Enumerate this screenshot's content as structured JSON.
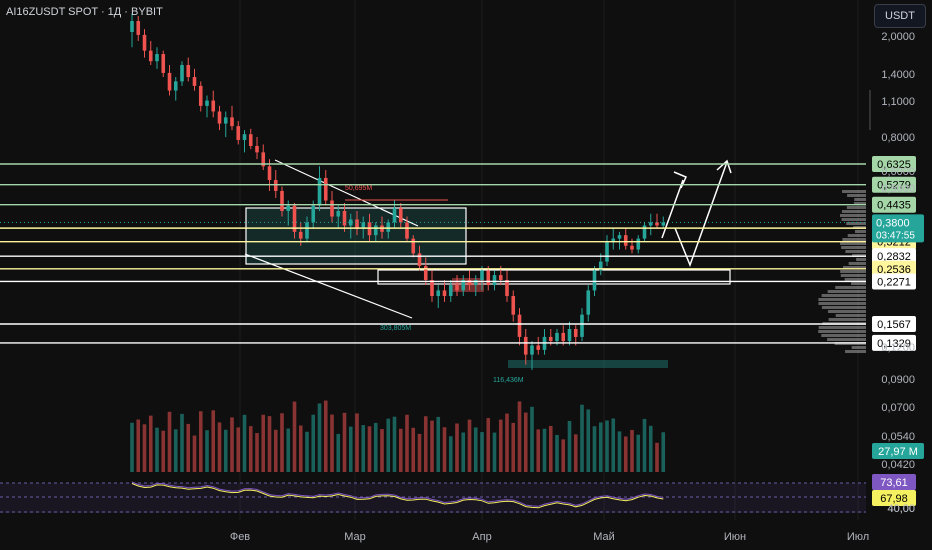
{
  "header": {
    "symbol_title": "AI16ZUSDT SPOT · 1Д · BYBIT",
    "currency": "USDT"
  },
  "chart_data": {
    "type": "candlestick",
    "price_axis": {
      "scale": "log",
      "ticks": [
        "2,0000",
        "1,4000",
        "1,1000",
        "0,8000",
        "0,6000",
        "0,5000",
        "0,1200",
        "0,0900",
        "0,0700",
        "0,0540",
        "0,0420",
        "40,00"
      ]
    },
    "x_axis": {
      "ticks": [
        "Фев",
        "Мар",
        "Апр",
        "Май",
        "Июн",
        "Июл"
      ]
    },
    "levels": [
      {
        "label": "0,6325",
        "value": 0.6325,
        "color": "#a5d6a7",
        "text_color": "#000000"
      },
      {
        "label": "0,5279",
        "value": 0.5279,
        "color": "#a5d6a7",
        "text_color": "#000000"
      },
      {
        "label": "0,4435",
        "value": 0.4435,
        "color": "#a5d6a7",
        "text_color": "#000000"
      },
      {
        "label": "0,3616",
        "value": 0.3616,
        "color": "#fff59d",
        "text_color": "#000000"
      },
      {
        "label": "0,3212",
        "value": 0.3212,
        "color": "#fff59d",
        "text_color": "#000000"
      },
      {
        "label": "0,2832",
        "value": 0.2832,
        "color": "#ffffff",
        "text_color": "#000000"
      },
      {
        "label": "0,2536",
        "value": 0.2536,
        "color": "#fff59d",
        "text_color": "#000000"
      },
      {
        "label": "0,2271",
        "value": 0.2271,
        "color": "#ffffff",
        "text_color": "#000000"
      },
      {
        "label": "0,1567",
        "value": 0.1567,
        "color": "#ffffff",
        "text_color": "#000000"
      },
      {
        "label": "0,1329",
        "value": 0.1329,
        "color": "#ffffff",
        "text_color": "#000000"
      }
    ],
    "current_price": {
      "label": "0,3800",
      "value": 0.38,
      "countdown": "03:47:55",
      "color": "#26a69a"
    },
    "annotations": [
      "50,695M",
      "303,805M",
      "116,436M"
    ],
    "volume": {
      "label": "27,97 M",
      "color": "#26a69a"
    },
    "rsi": {
      "value_label": "73,61",
      "ma_label": "67,98",
      "level_label": "40,00",
      "rsi_color": "#7e57c2",
      "ma_color": "#f5f060"
    },
    "candles": [
      [
        2.0,
        2.35,
        1.75,
        2.2
      ],
      [
        2.2,
        2.3,
        1.85,
        1.95
      ],
      [
        1.95,
        2.05,
        1.6,
        1.7
      ],
      [
        1.7,
        1.85,
        1.5,
        1.55
      ],
      [
        1.55,
        1.75,
        1.45,
        1.65
      ],
      [
        1.65,
        1.7,
        1.35,
        1.4
      ],
      [
        1.4,
        1.5,
        1.15,
        1.2
      ],
      [
        1.2,
        1.35,
        1.1,
        1.3
      ],
      [
        1.3,
        1.55,
        1.25,
        1.5
      ],
      [
        1.5,
        1.6,
        1.3,
        1.35
      ],
      [
        1.35,
        1.45,
        1.2,
        1.25
      ],
      [
        1.25,
        1.3,
        1.0,
        1.05
      ],
      [
        1.05,
        1.15,
        0.95,
        1.1
      ],
      [
        1.1,
        1.2,
        0.95,
        1.0
      ],
      [
        1.0,
        1.05,
        0.85,
        0.9
      ],
      [
        0.9,
        1.0,
        0.8,
        0.95
      ],
      [
        0.95,
        1.05,
        0.85,
        0.88
      ],
      [
        0.88,
        0.92,
        0.75,
        0.78
      ],
      [
        0.78,
        0.85,
        0.7,
        0.82
      ],
      [
        0.82,
        0.86,
        0.72,
        0.74
      ],
      [
        0.74,
        0.8,
        0.66,
        0.7
      ],
      [
        0.7,
        0.75,
        0.6,
        0.62
      ],
      [
        0.62,
        0.66,
        0.5,
        0.55
      ],
      [
        0.55,
        0.6,
        0.47,
        0.5
      ],
      [
        0.5,
        0.52,
        0.4,
        0.42
      ],
      [
        0.42,
        0.46,
        0.37,
        0.44
      ],
      [
        0.44,
        0.45,
        0.33,
        0.35
      ],
      [
        0.35,
        0.38,
        0.31,
        0.33
      ],
      [
        0.33,
        0.4,
        0.32,
        0.38
      ],
      [
        0.38,
        0.46,
        0.36,
        0.44
      ],
      [
        0.44,
        0.62,
        0.42,
        0.56
      ],
      [
        0.56,
        0.6,
        0.44,
        0.46
      ],
      [
        0.46,
        0.5,
        0.38,
        0.4
      ],
      [
        0.4,
        0.44,
        0.36,
        0.42
      ],
      [
        0.42,
        0.45,
        0.35,
        0.37
      ],
      [
        0.37,
        0.41,
        0.33,
        0.39
      ],
      [
        0.39,
        0.42,
        0.34,
        0.36
      ],
      [
        0.36,
        0.4,
        0.33,
        0.38
      ],
      [
        0.38,
        0.41,
        0.32,
        0.34
      ],
      [
        0.34,
        0.38,
        0.32,
        0.37
      ],
      [
        0.37,
        0.4,
        0.33,
        0.35
      ],
      [
        0.35,
        0.39,
        0.33,
        0.38
      ],
      [
        0.38,
        0.46,
        0.36,
        0.43
      ],
      [
        0.43,
        0.45,
        0.36,
        0.38
      ],
      [
        0.38,
        0.4,
        0.32,
        0.33
      ],
      [
        0.33,
        0.34,
        0.28,
        0.29
      ],
      [
        0.29,
        0.31,
        0.25,
        0.26
      ],
      [
        0.26,
        0.28,
        0.22,
        0.23
      ],
      [
        0.23,
        0.25,
        0.19,
        0.2
      ],
      [
        0.2,
        0.22,
        0.18,
        0.21
      ],
      [
        0.21,
        0.23,
        0.19,
        0.2
      ],
      [
        0.2,
        0.23,
        0.19,
        0.22
      ],
      [
        0.22,
        0.24,
        0.2,
        0.21
      ],
      [
        0.21,
        0.24,
        0.2,
        0.23
      ],
      [
        0.23,
        0.25,
        0.21,
        0.22
      ],
      [
        0.22,
        0.24,
        0.2,
        0.23
      ],
      [
        0.23,
        0.26,
        0.21,
        0.25
      ],
      [
        0.25,
        0.26,
        0.21,
        0.22
      ],
      [
        0.22,
        0.25,
        0.21,
        0.24
      ],
      [
        0.24,
        0.26,
        0.22,
        0.23
      ],
      [
        0.23,
        0.25,
        0.19,
        0.2
      ],
      [
        0.2,
        0.21,
        0.16,
        0.17
      ],
      [
        0.17,
        0.18,
        0.13,
        0.14
      ],
      [
        0.14,
        0.15,
        0.11,
        0.12
      ],
      [
        0.12,
        0.135,
        0.105,
        0.13
      ],
      [
        0.13,
        0.14,
        0.12,
        0.125
      ],
      [
        0.125,
        0.15,
        0.12,
        0.14
      ],
      [
        0.14,
        0.15,
        0.13,
        0.135
      ],
      [
        0.135,
        0.15,
        0.13,
        0.145
      ],
      [
        0.145,
        0.155,
        0.13,
        0.135
      ],
      [
        0.135,
        0.16,
        0.13,
        0.15
      ],
      [
        0.15,
        0.155,
        0.13,
        0.14
      ],
      [
        0.14,
        0.18,
        0.135,
        0.17
      ],
      [
        0.17,
        0.22,
        0.16,
        0.21
      ],
      [
        0.21,
        0.26,
        0.2,
        0.25
      ],
      [
        0.25,
        0.29,
        0.24,
        0.27
      ],
      [
        0.27,
        0.34,
        0.26,
        0.32
      ],
      [
        0.32,
        0.36,
        0.3,
        0.33
      ],
      [
        0.33,
        0.35,
        0.3,
        0.34
      ],
      [
        0.34,
        0.36,
        0.3,
        0.31
      ],
      [
        0.31,
        0.33,
        0.29,
        0.3
      ],
      [
        0.3,
        0.34,
        0.29,
        0.33
      ],
      [
        0.33,
        0.38,
        0.32,
        0.37
      ],
      [
        0.37,
        0.41,
        0.34,
        0.38
      ],
      [
        0.38,
        0.41,
        0.36,
        0.37
      ],
      [
        0.37,
        0.4,
        0.36,
        0.38
      ]
    ]
  }
}
